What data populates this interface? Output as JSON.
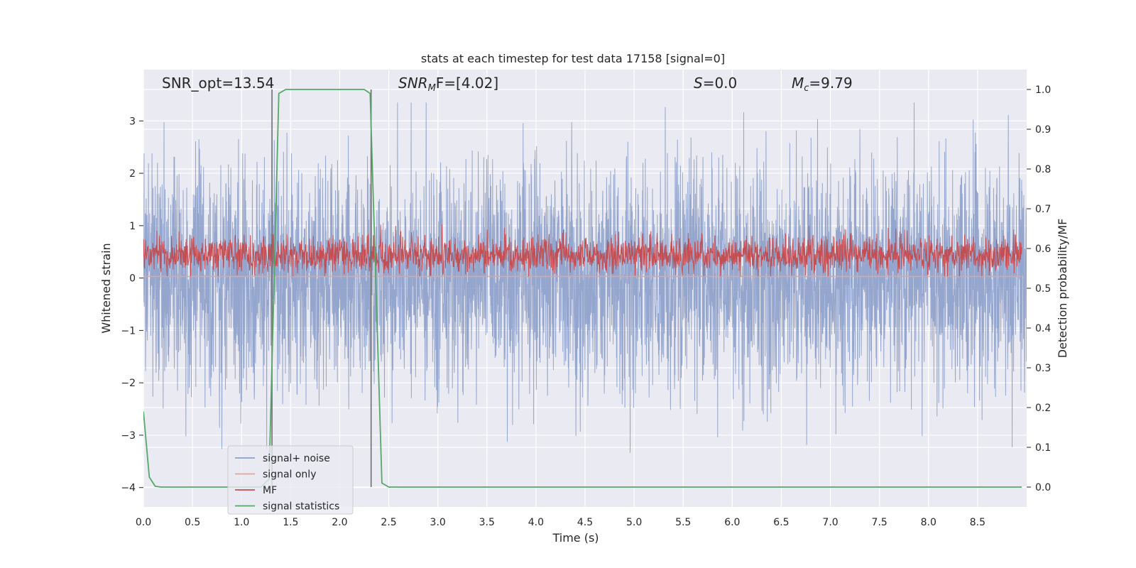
{
  "chart_data": {
    "type": "line",
    "title": "stats at each timestep for test data 17158 [signal=0]",
    "xlabel": "Time (s)",
    "ylabel_left": "Whitened strain",
    "ylabel_right": "Detection probability/MF",
    "xlim": [
      0.0,
      9.0
    ],
    "ylim_left": [
      -4.37,
      3.98
    ],
    "ylim_right": [
      -0.05,
      1.05
    ],
    "xticks": [
      "0.0",
      "0.5",
      "1.0",
      "1.5",
      "2.0",
      "2.5",
      "3.0",
      "3.5",
      "4.0",
      "4.5",
      "5.0",
      "5.5",
      "6.0",
      "6.5",
      "7.0",
      "7.5",
      "8.0",
      "8.5"
    ],
    "xtick_values": [
      0.0,
      0.5,
      1.0,
      1.5,
      2.0,
      2.5,
      3.0,
      3.5,
      4.0,
      4.5,
      5.0,
      5.5,
      6.0,
      6.5,
      7.0,
      7.5,
      8.0,
      8.5
    ],
    "yticks_left": [
      "−4",
      "−3",
      "−2",
      "−1",
      "0",
      "1",
      "2",
      "3"
    ],
    "ytick_values_left": [
      -4,
      -3,
      -2,
      -1,
      0,
      1,
      2,
      3
    ],
    "yticks_right": [
      "0.0",
      "0.1",
      "0.2",
      "0.3",
      "0.4",
      "0.5",
      "0.6",
      "0.7",
      "0.8",
      "0.9",
      "1.0"
    ],
    "ytick_values_right": [
      0.0,
      0.1,
      0.2,
      0.3,
      0.4,
      0.5,
      0.6,
      0.7,
      0.8,
      0.9,
      1.0
    ],
    "grid": true,
    "legend_position": "lower-left",
    "annotations": {
      "snr_opt": "SNR_opt=13.54",
      "snr_mf_main": "SNR",
      "snr_mf_sub": "M",
      "snr_mf_rest": "F=[4.02]",
      "s_main": "S",
      "s_rest": "=0.0",
      "mc_main": "M",
      "mc_sub": "c",
      "mc_rest": "=9.79"
    },
    "vlines": [
      1.31,
      2.32
    ],
    "series": [
      {
        "name": "signal+ noise",
        "axis": "left",
        "color": "#8c9fca",
        "kind": "noise",
        "range_min": -4.0,
        "range_max": 3.35,
        "typical_amplitude": 1.6
      },
      {
        "name": "signal only",
        "axis": "left",
        "color": "#e8a48c",
        "kind": "constant",
        "value": 0.03
      },
      {
        "name": "MF",
        "axis": "right",
        "color": "#c44e52",
        "kind": "noise-band",
        "range_min": 0.53,
        "range_max": 0.66,
        "center": 0.585
      },
      {
        "name": "signal statistics",
        "axis": "right",
        "color": "#55a868",
        "kind": "line",
        "x": [
          0.0,
          0.06,
          0.12,
          0.18,
          0.3,
          1.2,
          1.28,
          1.33,
          1.38,
          1.45,
          2.0,
          2.25,
          2.31,
          2.37,
          2.43,
          2.5,
          2.6,
          8.95
        ],
        "y": [
          0.19,
          0.025,
          0.002,
          0.0,
          0.0,
          0.0,
          0.02,
          0.5,
          0.99,
          1.0,
          1.0,
          1.0,
          0.99,
          0.5,
          0.01,
          0.0,
          0.0,
          0.0
        ]
      }
    ]
  }
}
